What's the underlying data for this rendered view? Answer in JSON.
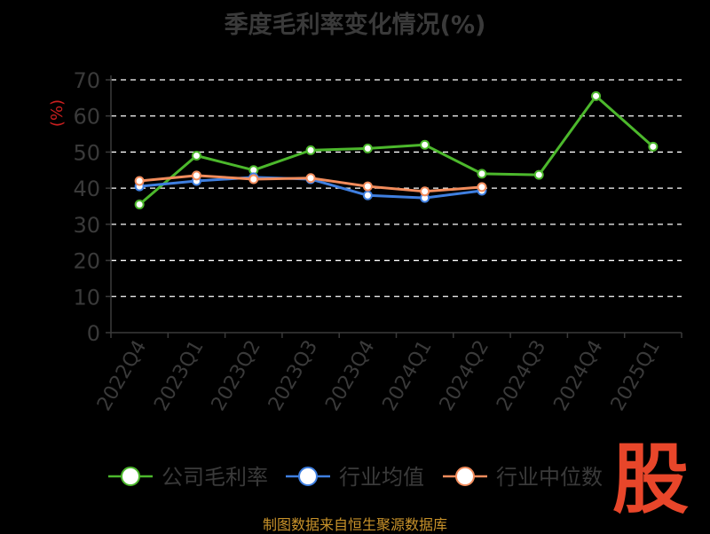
{
  "chart_data": {
    "type": "line",
    "title": "季度毛利率变化情况(%)",
    "ylabel": "(%)",
    "xlabel": "",
    "categories": [
      "2022Q4",
      "2023Q1",
      "2023Q2",
      "2023Q3",
      "2023Q4",
      "2024Q1",
      "2024Q2",
      "2024Q3",
      "2024Q4",
      "2025Q1"
    ],
    "ylim": [
      0,
      70
    ],
    "yticks": [
      0,
      10,
      20,
      30,
      40,
      50,
      60,
      70
    ],
    "grid": true,
    "legend_position": "bottom",
    "series": [
      {
        "name": "公司毛利率",
        "color": "#4cb82c",
        "values": [
          35.5,
          49,
          45,
          50.5,
          51,
          52,
          44,
          43.7,
          65.5,
          51.5
        ]
      },
      {
        "name": "行业均值",
        "color": "#3f7fe0",
        "values": [
          40.5,
          42,
          43,
          42.5,
          38,
          37.3,
          39.3,
          null,
          null,
          null
        ]
      },
      {
        "name": "行业中位数",
        "color": "#f28c5c",
        "values": [
          42,
          43.5,
          42.5,
          42.8,
          40.5,
          39.1,
          40.3,
          null,
          null,
          null
        ]
      }
    ]
  },
  "footer": "制图数据来自恒生聚源数据库",
  "logo_text": "股"
}
